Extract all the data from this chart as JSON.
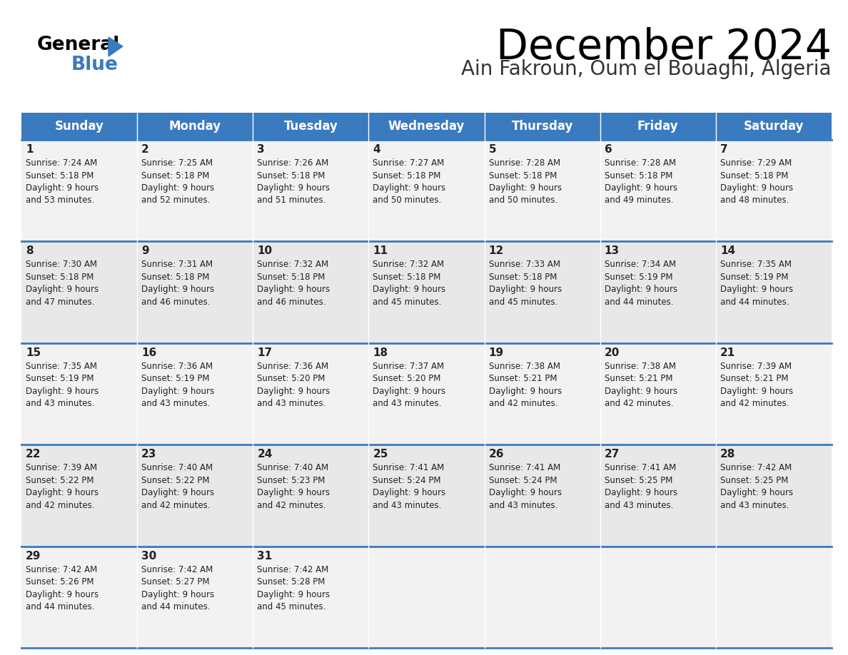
{
  "title": "December 2024",
  "subtitle": "Ain Fakroun, Oum el Bouaghi, Algeria",
  "header_bg_color": "#3a7abf",
  "header_text_color": "#ffffff",
  "cell_bg_light": "#f2f2f2",
  "cell_bg_dark": "#e8e8e8",
  "border_color": "#3a7abf",
  "text_color": "#222222",
  "day_names": [
    "Sunday",
    "Monday",
    "Tuesday",
    "Wednesday",
    "Thursday",
    "Friday",
    "Saturday"
  ],
  "days": [
    {
      "day": 1,
      "col": 0,
      "row": 0,
      "sunrise": "7:24 AM",
      "sunset": "5:18 PM",
      "daylight_hours": 9,
      "daylight_minutes": 53
    },
    {
      "day": 2,
      "col": 1,
      "row": 0,
      "sunrise": "7:25 AM",
      "sunset": "5:18 PM",
      "daylight_hours": 9,
      "daylight_minutes": 52
    },
    {
      "day": 3,
      "col": 2,
      "row": 0,
      "sunrise": "7:26 AM",
      "sunset": "5:18 PM",
      "daylight_hours": 9,
      "daylight_minutes": 51
    },
    {
      "day": 4,
      "col": 3,
      "row": 0,
      "sunrise": "7:27 AM",
      "sunset": "5:18 PM",
      "daylight_hours": 9,
      "daylight_minutes": 50
    },
    {
      "day": 5,
      "col": 4,
      "row": 0,
      "sunrise": "7:28 AM",
      "sunset": "5:18 PM",
      "daylight_hours": 9,
      "daylight_minutes": 50
    },
    {
      "day": 6,
      "col": 5,
      "row": 0,
      "sunrise": "7:28 AM",
      "sunset": "5:18 PM",
      "daylight_hours": 9,
      "daylight_minutes": 49
    },
    {
      "day": 7,
      "col": 6,
      "row": 0,
      "sunrise": "7:29 AM",
      "sunset": "5:18 PM",
      "daylight_hours": 9,
      "daylight_minutes": 48
    },
    {
      "day": 8,
      "col": 0,
      "row": 1,
      "sunrise": "7:30 AM",
      "sunset": "5:18 PM",
      "daylight_hours": 9,
      "daylight_minutes": 47
    },
    {
      "day": 9,
      "col": 1,
      "row": 1,
      "sunrise": "7:31 AM",
      "sunset": "5:18 PM",
      "daylight_hours": 9,
      "daylight_minutes": 46
    },
    {
      "day": 10,
      "col": 2,
      "row": 1,
      "sunrise": "7:32 AM",
      "sunset": "5:18 PM",
      "daylight_hours": 9,
      "daylight_minutes": 46
    },
    {
      "day": 11,
      "col": 3,
      "row": 1,
      "sunrise": "7:32 AM",
      "sunset": "5:18 PM",
      "daylight_hours": 9,
      "daylight_minutes": 45
    },
    {
      "day": 12,
      "col": 4,
      "row": 1,
      "sunrise": "7:33 AM",
      "sunset": "5:18 PM",
      "daylight_hours": 9,
      "daylight_minutes": 45
    },
    {
      "day": 13,
      "col": 5,
      "row": 1,
      "sunrise": "7:34 AM",
      "sunset": "5:19 PM",
      "daylight_hours": 9,
      "daylight_minutes": 44
    },
    {
      "day": 14,
      "col": 6,
      "row": 1,
      "sunrise": "7:35 AM",
      "sunset": "5:19 PM",
      "daylight_hours": 9,
      "daylight_minutes": 44
    },
    {
      "day": 15,
      "col": 0,
      "row": 2,
      "sunrise": "7:35 AM",
      "sunset": "5:19 PM",
      "daylight_hours": 9,
      "daylight_minutes": 43
    },
    {
      "day": 16,
      "col": 1,
      "row": 2,
      "sunrise": "7:36 AM",
      "sunset": "5:19 PM",
      "daylight_hours": 9,
      "daylight_minutes": 43
    },
    {
      "day": 17,
      "col": 2,
      "row": 2,
      "sunrise": "7:36 AM",
      "sunset": "5:20 PM",
      "daylight_hours": 9,
      "daylight_minutes": 43
    },
    {
      "day": 18,
      "col": 3,
      "row": 2,
      "sunrise": "7:37 AM",
      "sunset": "5:20 PM",
      "daylight_hours": 9,
      "daylight_minutes": 43
    },
    {
      "day": 19,
      "col": 4,
      "row": 2,
      "sunrise": "7:38 AM",
      "sunset": "5:21 PM",
      "daylight_hours": 9,
      "daylight_minutes": 42
    },
    {
      "day": 20,
      "col": 5,
      "row": 2,
      "sunrise": "7:38 AM",
      "sunset": "5:21 PM",
      "daylight_hours": 9,
      "daylight_minutes": 42
    },
    {
      "day": 21,
      "col": 6,
      "row": 2,
      "sunrise": "7:39 AM",
      "sunset": "5:21 PM",
      "daylight_hours": 9,
      "daylight_minutes": 42
    },
    {
      "day": 22,
      "col": 0,
      "row": 3,
      "sunrise": "7:39 AM",
      "sunset": "5:22 PM",
      "daylight_hours": 9,
      "daylight_minutes": 42
    },
    {
      "day": 23,
      "col": 1,
      "row": 3,
      "sunrise": "7:40 AM",
      "sunset": "5:22 PM",
      "daylight_hours": 9,
      "daylight_minutes": 42
    },
    {
      "day": 24,
      "col": 2,
      "row": 3,
      "sunrise": "7:40 AM",
      "sunset": "5:23 PM",
      "daylight_hours": 9,
      "daylight_minutes": 42
    },
    {
      "day": 25,
      "col": 3,
      "row": 3,
      "sunrise": "7:41 AM",
      "sunset": "5:24 PM",
      "daylight_hours": 9,
      "daylight_minutes": 43
    },
    {
      "day": 26,
      "col": 4,
      "row": 3,
      "sunrise": "7:41 AM",
      "sunset": "5:24 PM",
      "daylight_hours": 9,
      "daylight_minutes": 43
    },
    {
      "day": 27,
      "col": 5,
      "row": 3,
      "sunrise": "7:41 AM",
      "sunset": "5:25 PM",
      "daylight_hours": 9,
      "daylight_minutes": 43
    },
    {
      "day": 28,
      "col": 6,
      "row": 3,
      "sunrise": "7:42 AM",
      "sunset": "5:25 PM",
      "daylight_hours": 9,
      "daylight_minutes": 43
    },
    {
      "day": 29,
      "col": 0,
      "row": 4,
      "sunrise": "7:42 AM",
      "sunset": "5:26 PM",
      "daylight_hours": 9,
      "daylight_minutes": 44
    },
    {
      "day": 30,
      "col": 1,
      "row": 4,
      "sunrise": "7:42 AM",
      "sunset": "5:27 PM",
      "daylight_hours": 9,
      "daylight_minutes": 44
    },
    {
      "day": 31,
      "col": 2,
      "row": 4,
      "sunrise": "7:42 AM",
      "sunset": "5:28 PM",
      "daylight_hours": 9,
      "daylight_minutes": 45
    }
  ]
}
